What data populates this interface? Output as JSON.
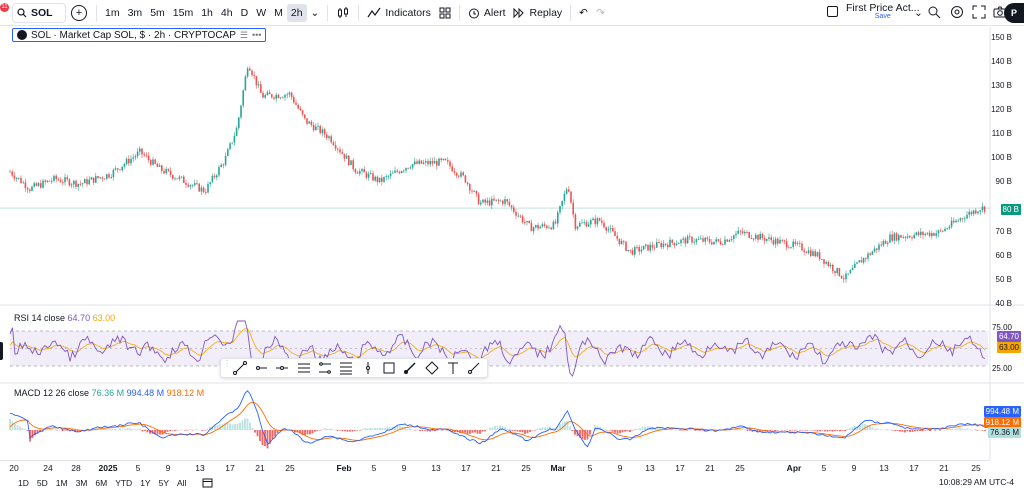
{
  "toolbar": {
    "notification_count": "11",
    "symbol": "SOL",
    "intervals": [
      "1m",
      "3m",
      "5m",
      "15m",
      "1h",
      "4h",
      "D",
      "W",
      "M",
      "2h"
    ],
    "active_interval": "2h",
    "indicators_label": "Indicators",
    "alert_label": "Alert",
    "replay_label": "Replay",
    "layout_name": "First Price Act...",
    "layout_save": "Save",
    "avatar_initial": "P"
  },
  "legend": {
    "title": "SOL · Market Cap SOL, $ · 2h · CRYPTOCAP"
  },
  "price_scale": {
    "labels": [
      "150 B",
      "140 B",
      "130 B",
      "120 B",
      "110 B",
      "100 B",
      "90 B",
      "80 B",
      "70 B",
      "60 B",
      "50 B",
      "40 B"
    ],
    "current_tag": "80 B"
  },
  "rsi": {
    "label": "RSI 14 close",
    "value1": "64.70",
    "value2": "63.00",
    "scale_labels": [
      "75.00",
      "25.00"
    ],
    "tag1": "64.70",
    "tag2": "63.00"
  },
  "macd": {
    "label": "MACD 12 26 close",
    "value_hist": "76.36 M",
    "value_macd": "994.48 M",
    "value_signal": "918.12 M",
    "tags": [
      "994.48 M",
      "918.12 M",
      "76.36 M"
    ]
  },
  "time_axis": {
    "ticks": [
      "20",
      "24",
      "28",
      "2025",
      "5",
      "9",
      "13",
      "17",
      "21",
      "25",
      "Feb",
      "5",
      "9",
      "13",
      "17",
      "21",
      "25",
      "Mar",
      "5",
      "9",
      "13",
      "17",
      "21",
      "25",
      "Apr",
      "5",
      "9",
      "13",
      "17",
      "21",
      "25"
    ]
  },
  "bottom_bar": {
    "ranges": [
      "1D",
      "5D",
      "1M",
      "3M",
      "6M",
      "YTD",
      "1Y",
      "5Y",
      "All"
    ],
    "clock": "10:08:29 AM UTC-4"
  },
  "colors": {
    "up": "#26a69a",
    "down": "#ef5350",
    "rsi": "#7e57c2",
    "rsi_ma": "#f7a600",
    "macd": "#2962ff",
    "signal": "#ff6d00",
    "accent": "#2962ff"
  }
}
